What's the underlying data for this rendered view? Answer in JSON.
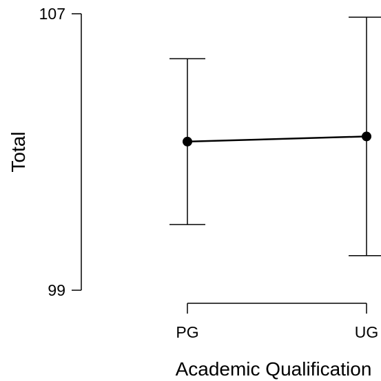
{
  "chart_data": {
    "type": "line",
    "title": "",
    "xlabel": "Academic Qualification",
    "ylabel": "Total",
    "categories": [
      "PG",
      "UG"
    ],
    "y_ticks": [
      "107",
      "99"
    ],
    "ylim": [
      99,
      107
    ],
    "grid": false,
    "legend": "none",
    "series": [
      {
        "values": [
          103.3,
          103.45
        ],
        "error_low": [
          100.9,
          100.0
        ],
        "error_high": [
          105.7,
          106.9
        ]
      }
    ]
  }
}
